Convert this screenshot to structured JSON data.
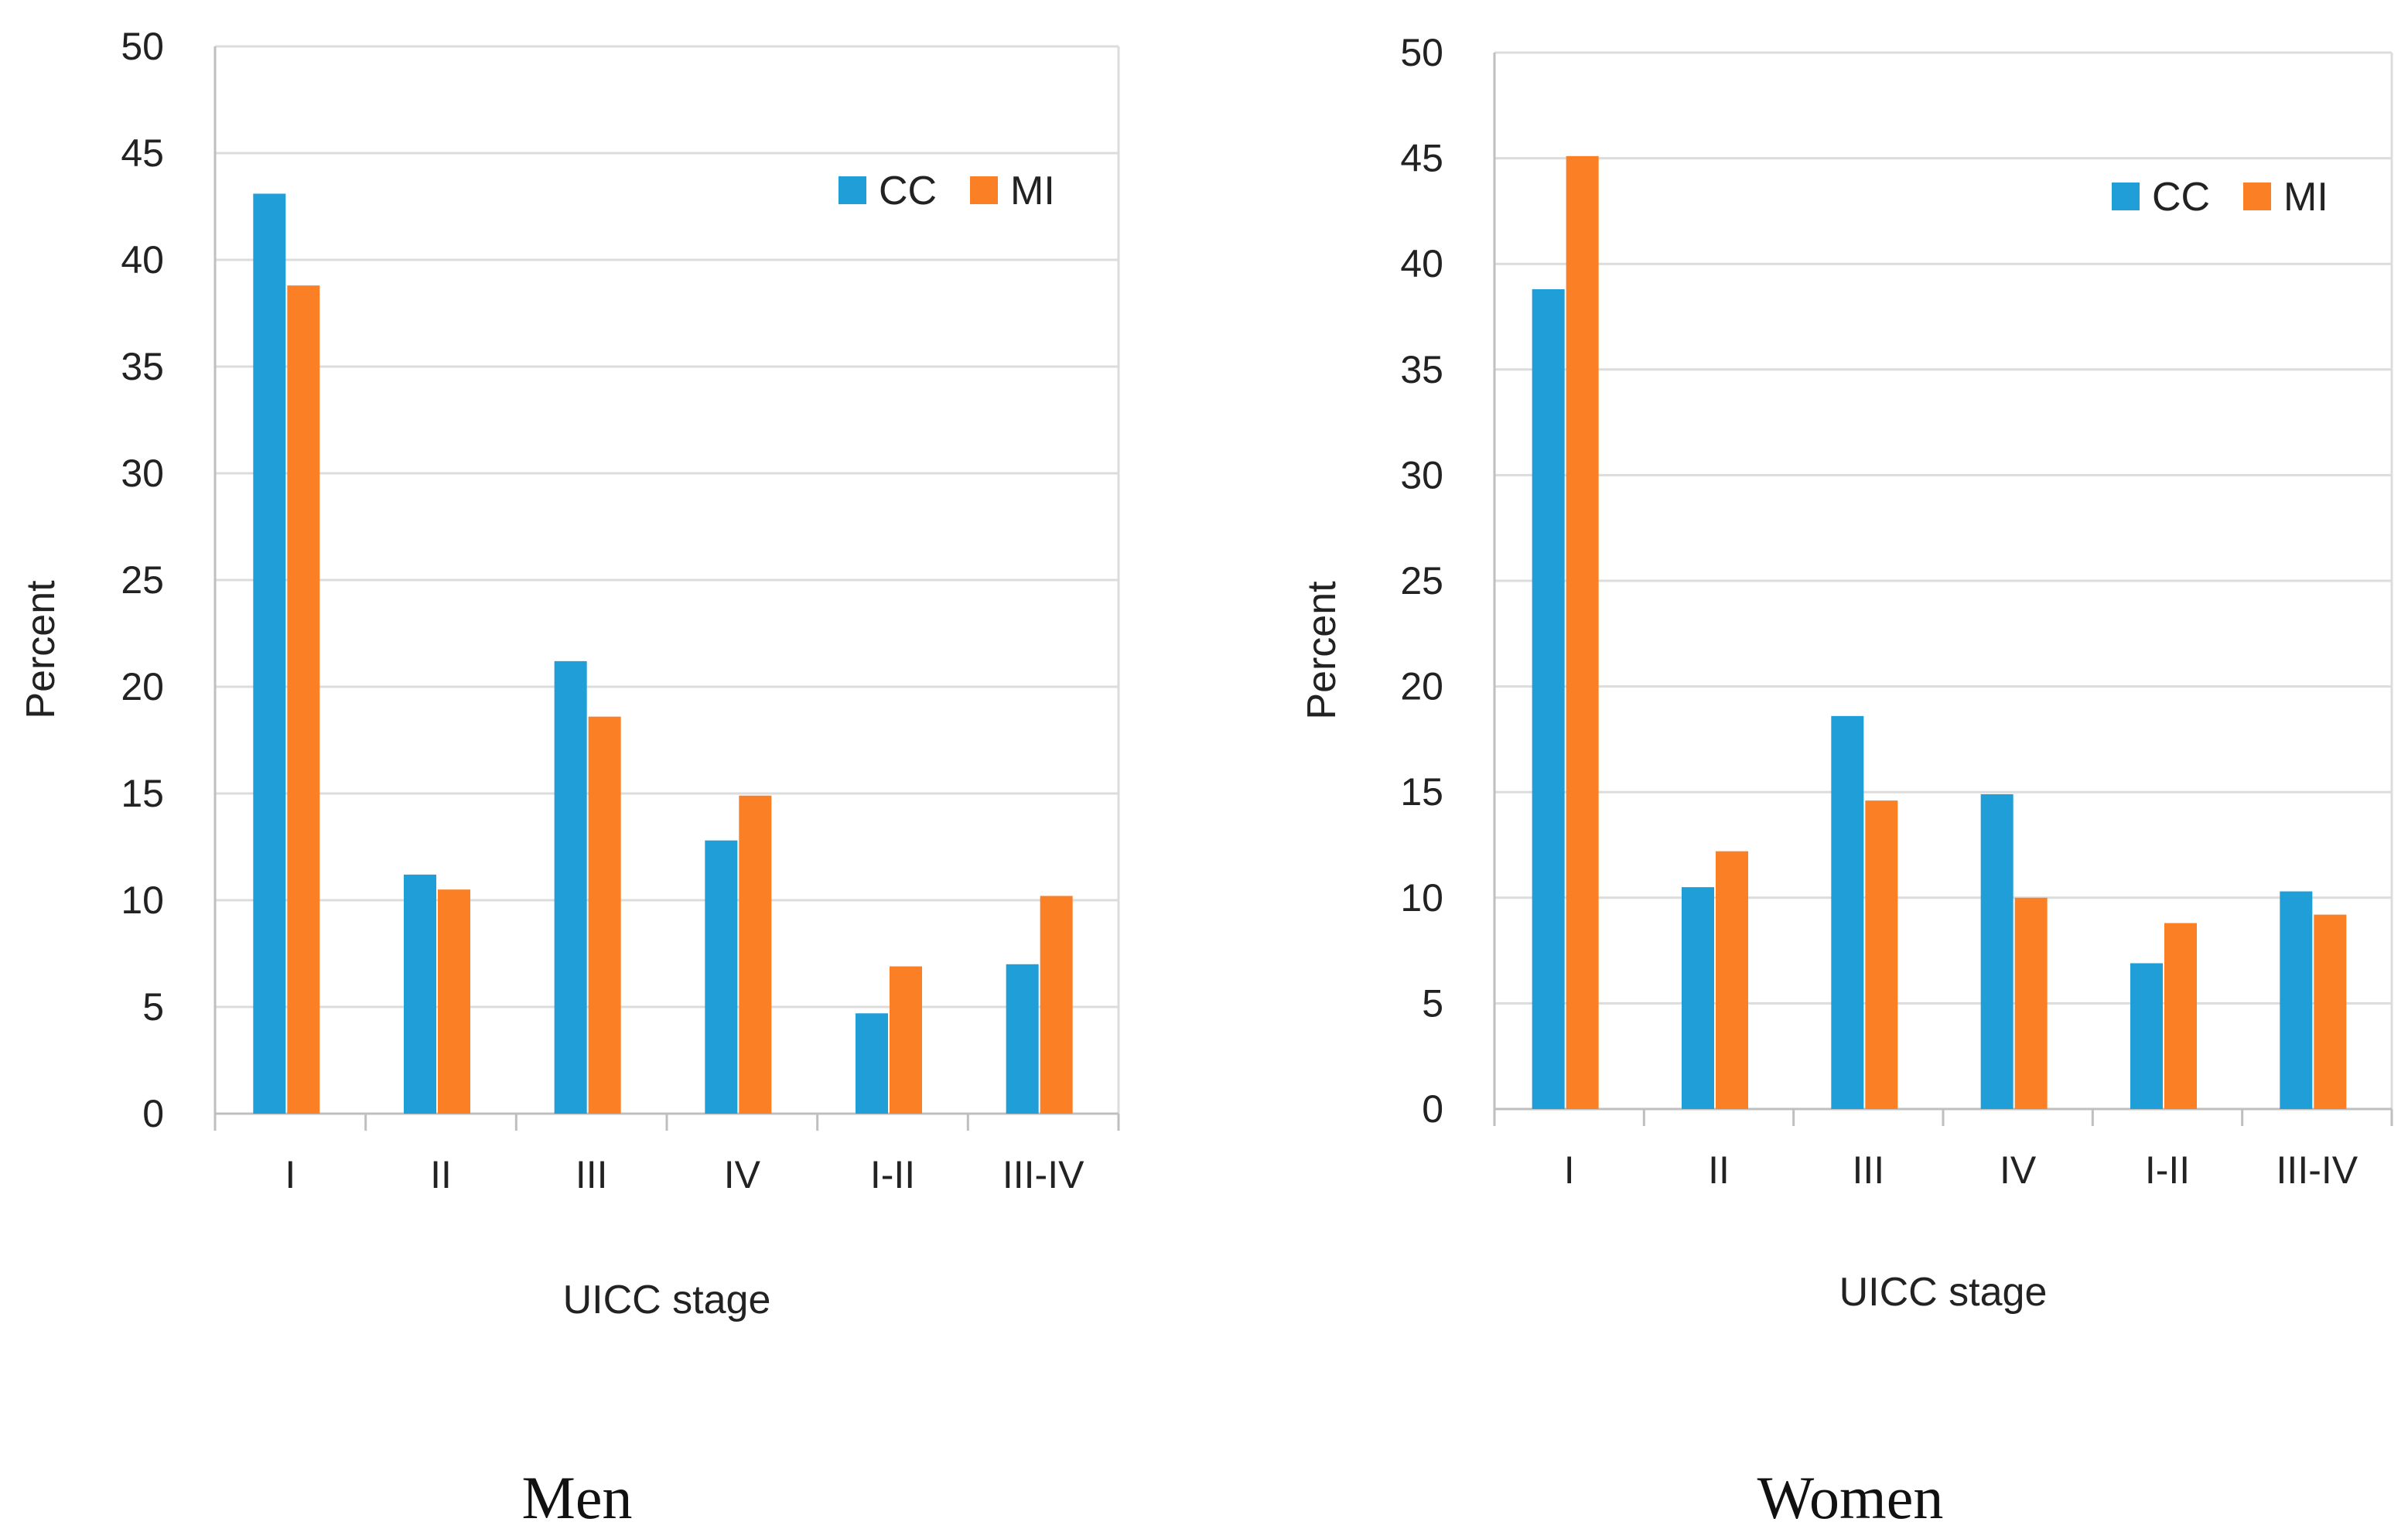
{
  "chart_data": [
    {
      "type": "bar",
      "caption": "Men",
      "categories": [
        "I",
        "II",
        "III",
        "IV",
        "I-II",
        "III-IV"
      ],
      "series": [
        {
          "name": "CC",
          "values": [
            43.1,
            11.2,
            21.2,
            12.8,
            4.7,
            7.0
          ]
        },
        {
          "name": "MI",
          "values": [
            38.8,
            10.5,
            18.6,
            14.9,
            6.9,
            10.2
          ]
        }
      ],
      "title": "",
      "xlabel": "UICC stage",
      "ylabel": "Percent",
      "ylim": [
        0,
        50
      ],
      "yticks": [
        "0",
        "5",
        "10",
        "15",
        "20",
        "25",
        "30",
        "35",
        "40",
        "45",
        "50"
      ],
      "grid": true,
      "legend_position": "top-right"
    },
    {
      "type": "bar",
      "caption": "Women",
      "categories": [
        "I",
        "II",
        "III",
        "IV",
        "I-II",
        "III-IV"
      ],
      "series": [
        {
          "name": "CC",
          "values": [
            38.8,
            10.5,
            18.6,
            14.9,
            6.9,
            10.3
          ]
        },
        {
          "name": "MI",
          "values": [
            45.1,
            12.2,
            14.6,
            10.0,
            8.8,
            9.2
          ]
        }
      ],
      "title": "",
      "xlabel": "UICC stage",
      "ylabel": "Percent",
      "ylim": [
        0,
        50
      ],
      "yticks": [
        "0",
        "5",
        "10",
        "15",
        "20",
        "25",
        "30",
        "35",
        "40",
        "45",
        "50"
      ],
      "grid": true,
      "legend_position": "top-right"
    }
  ],
  "colors": {
    "CC": "#1f9ed8",
    "MI": "#fb7f25",
    "grid": "#dcdcdc",
    "axis": "#bfbfbf"
  }
}
